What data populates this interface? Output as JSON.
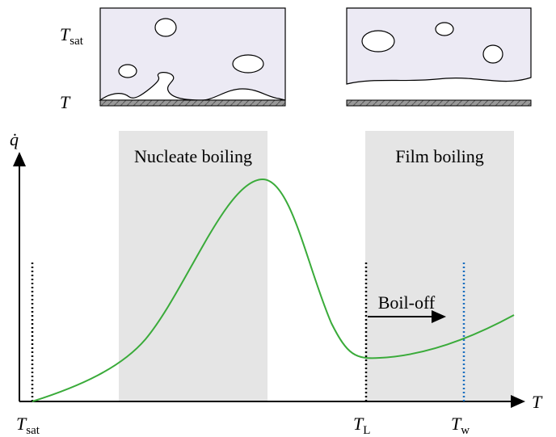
{
  "top_labels": {
    "saturation": {
      "symbol": "T",
      "sub": "sat"
    },
    "wall": {
      "symbol": "T"
    }
  },
  "regions": {
    "nucleate": "Nucleate boiling",
    "film": "Film boiling"
  },
  "axes": {
    "y": "q̇",
    "x": "T"
  },
  "markers": {
    "saturation": {
      "symbol": "T",
      "sub": "sat"
    },
    "leidenfrost": {
      "symbol": "T",
      "sub": "L"
    },
    "wall": {
      "symbol": "T",
      "sub": "w"
    }
  },
  "annotation": "Boil-off"
}
